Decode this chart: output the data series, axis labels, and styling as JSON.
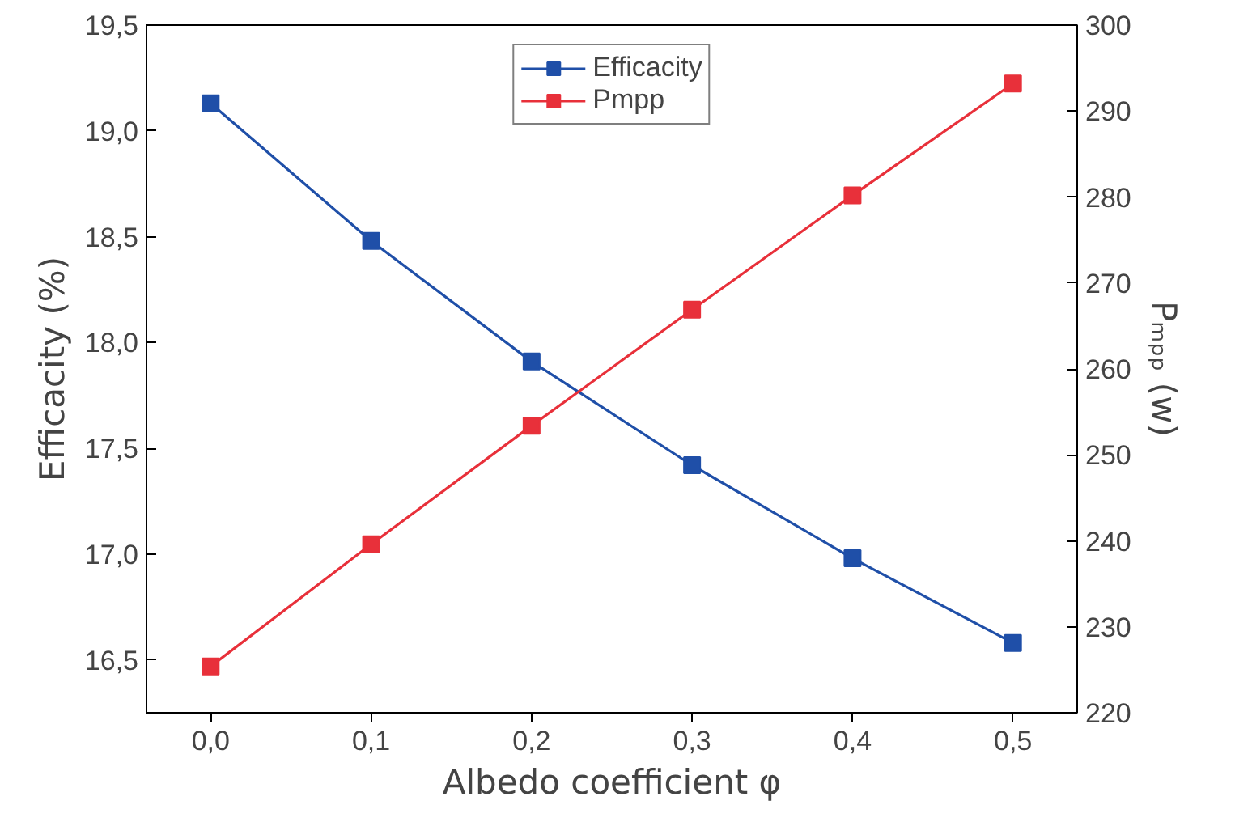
{
  "chart_data": {
    "type": "line",
    "xlabel": "Albedo coefficient φ",
    "ylabel": "Efficacity (%)",
    "y2label": "Pₘₚₚ (w)",
    "x": [
      0,
      0.1,
      0.2,
      0.3,
      0.4,
      0.5
    ],
    "series": [
      {
        "name": "Efficacity",
        "color": "#1f4fa8",
        "values": [
          19.13,
          18.48,
          17.91,
          17.42,
          16.98,
          16.58
        ]
      },
      {
        "name": "Pmpp",
        "color": "#e8303a",
        "axis": "y2",
        "values": [
          225.4,
          239.6,
          253.4,
          266.9,
          280.2,
          293.2
        ]
      }
    ],
    "xlim": [
      -0.04,
      0.54
    ],
    "xticks": [
      {
        "value": 0,
        "label": "0,0"
      },
      {
        "value": 0.1,
        "label": "0,1"
      },
      {
        "value": 0.2,
        "label": "0,2"
      },
      {
        "value": 0.3,
        "label": "0,3"
      },
      {
        "value": 0.4,
        "label": "0,4"
      },
      {
        "value": 0.5,
        "label": "0,5"
      }
    ],
    "ylim": [
      16.25,
      19.5
    ],
    "yticks": [
      {
        "value": 16.5,
        "label": "16,5"
      },
      {
        "value": 17,
        "label": "17,0"
      },
      {
        "value": 17.5,
        "label": "17,5"
      },
      {
        "value": 18,
        "label": "18,0"
      },
      {
        "value": 18.5,
        "label": "18,5"
      },
      {
        "value": 19,
        "label": "19,0"
      },
      {
        "value": 19.5,
        "label": "19,5"
      }
    ],
    "y2lim": [
      220,
      300
    ],
    "y2ticks": [
      220,
      230,
      240,
      250,
      260,
      270,
      280,
      290,
      300
    ],
    "marker": "square",
    "line_style": "solid",
    "grid": false,
    "legend": "top"
  }
}
